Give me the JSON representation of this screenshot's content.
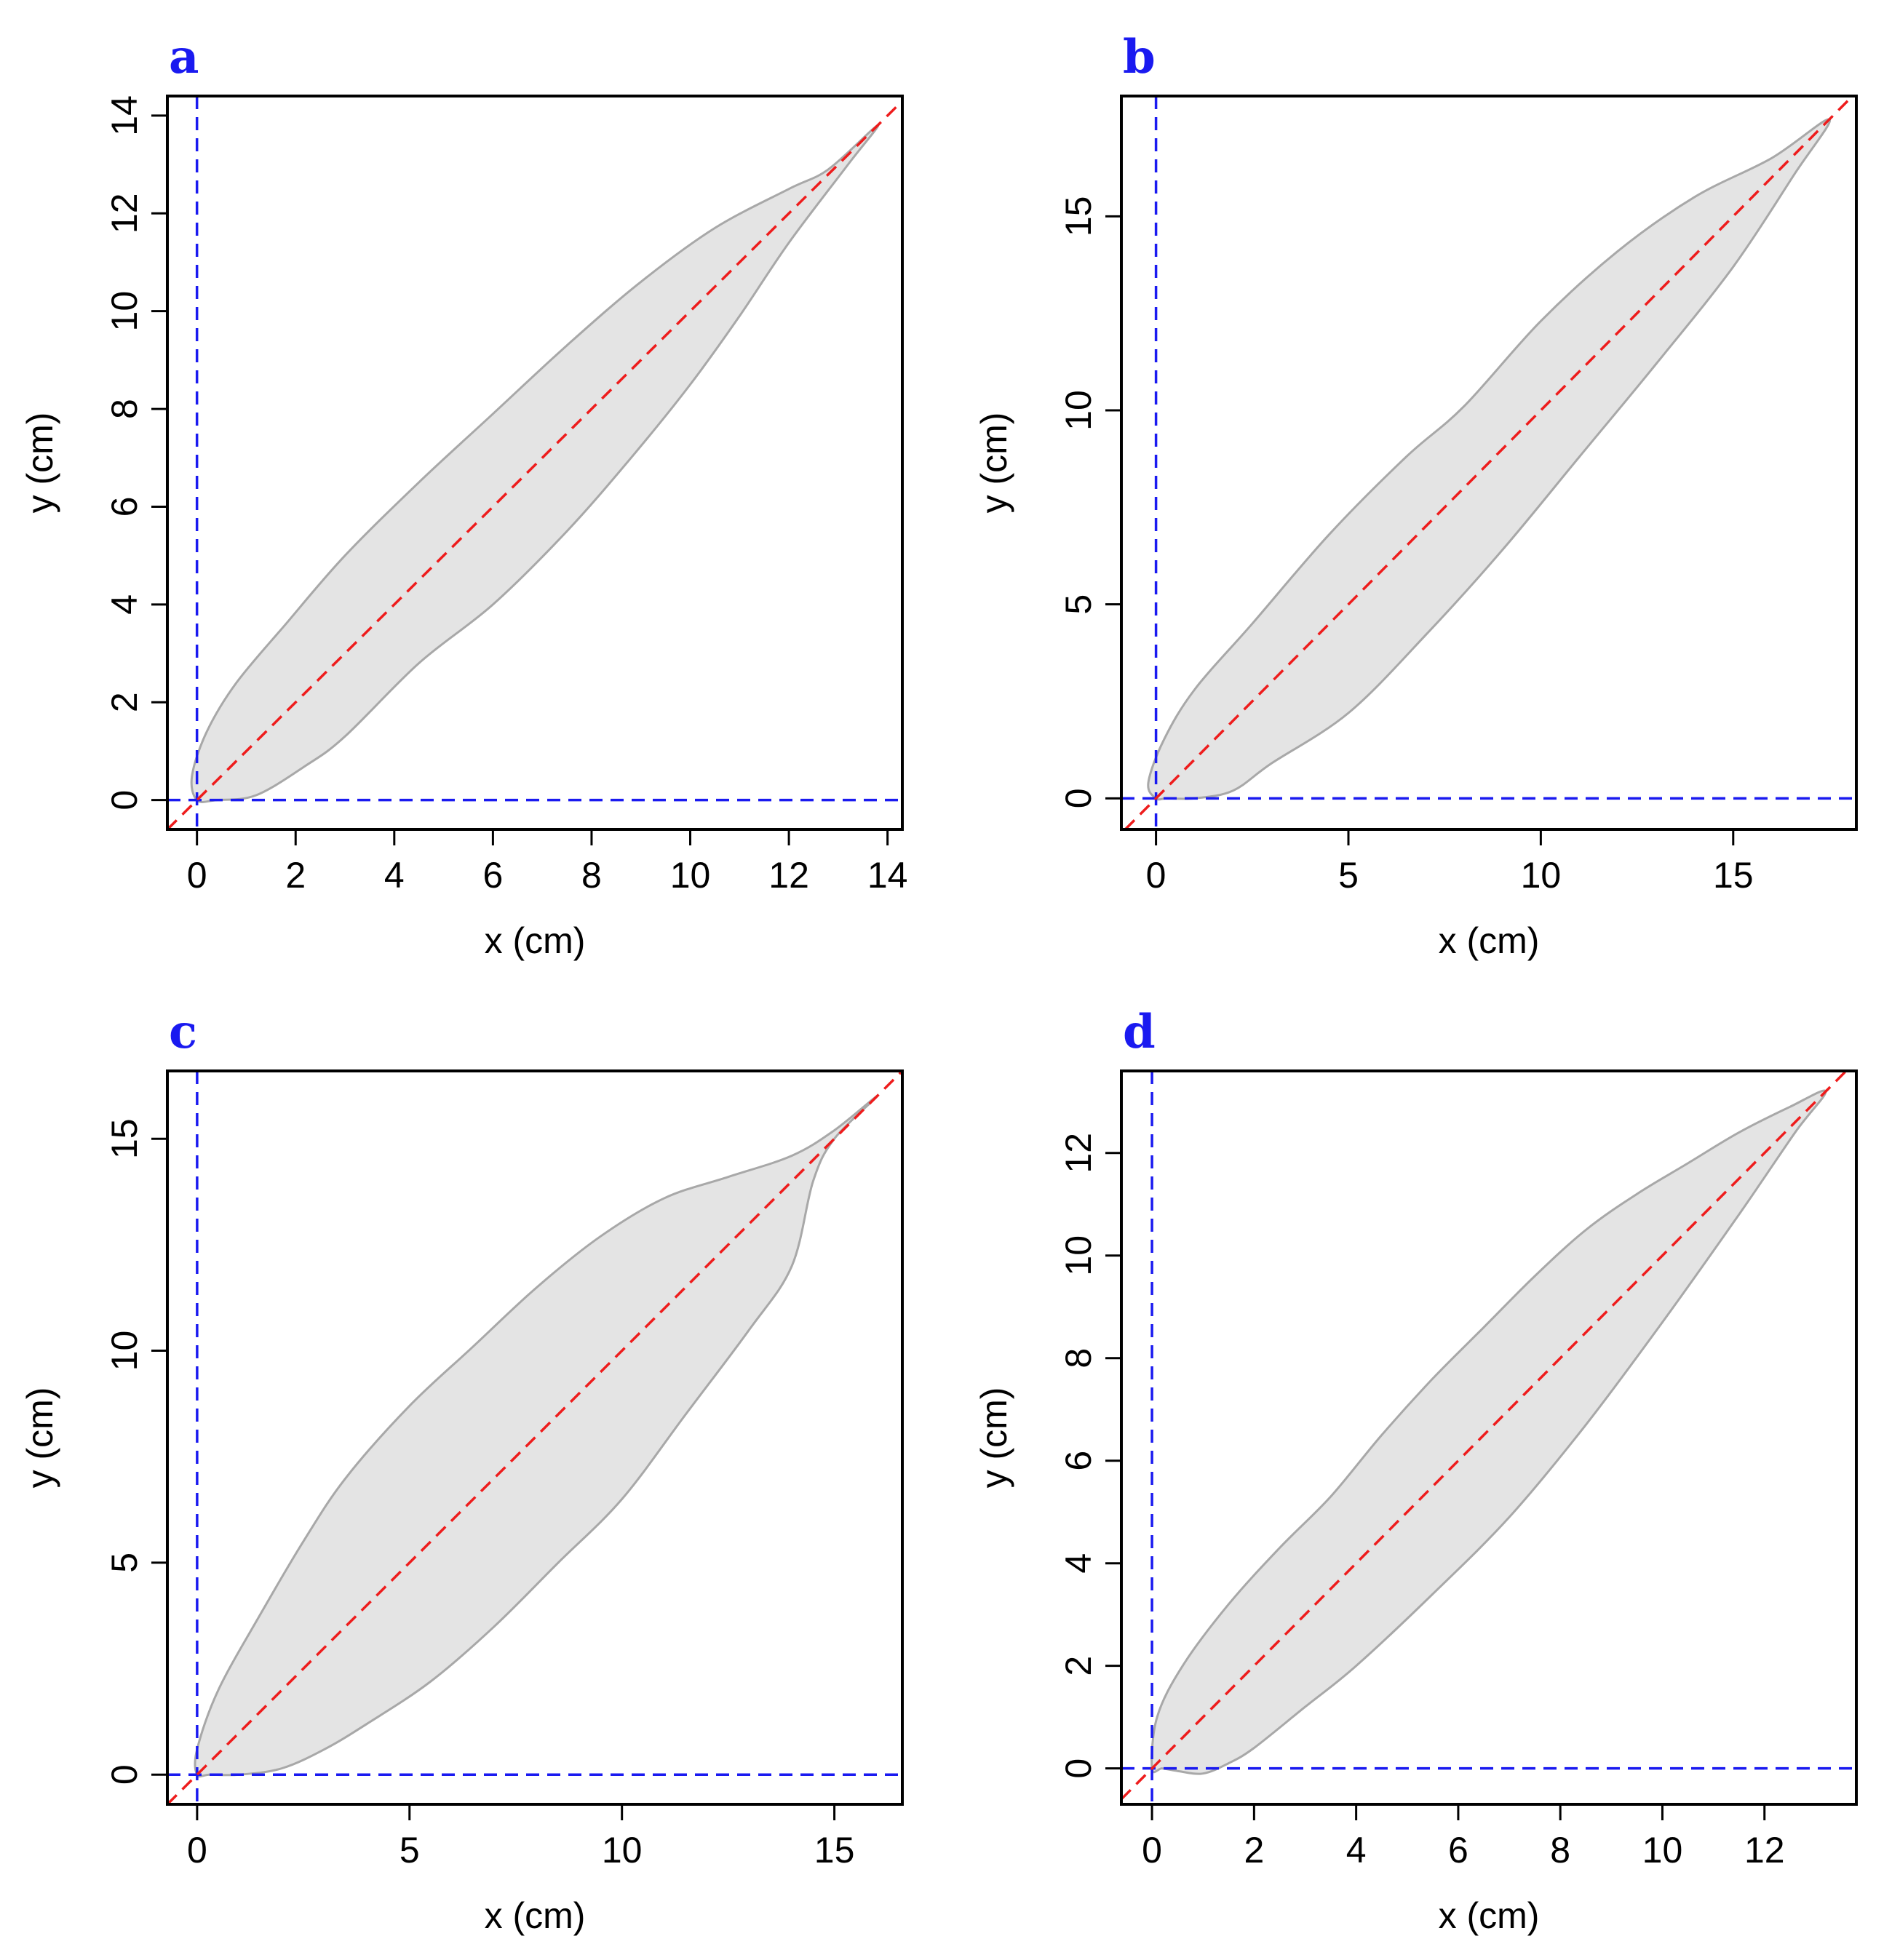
{
  "figure": {
    "colors": {
      "axis_guides": "#1a1af0",
      "diagonal": "#ee1c1c",
      "leaf_fill": "#e4e4e4",
      "leaf_outline": "#a8a8a8",
      "panel_letter": "#1a1af0"
    }
  },
  "chart_data": [
    {
      "type": "area",
      "panel": "a",
      "title": "",
      "xlabel": "x (cm)",
      "ylabel": "y (cm)",
      "xlim": [
        -0.6,
        14.3
      ],
      "ylim": [
        -0.6,
        14.4
      ],
      "xticks": [
        0,
        2,
        4,
        6,
        8,
        10,
        12,
        14
      ],
      "yticks": [
        0,
        2,
        4,
        6,
        8,
        10,
        12,
        14
      ],
      "grid": false,
      "reference_lines": [
        "x = 0 (blue dashed)",
        "y = 0 (blue dashed)",
        "y = x (red dashed)"
      ],
      "outline": [
        [
          0,
          0
        ],
        [
          -0.1,
          0.5
        ],
        [
          0.2,
          1.4
        ],
        [
          0.8,
          2.4
        ],
        [
          1.8,
          3.6
        ],
        [
          3,
          5
        ],
        [
          4.5,
          6.5
        ],
        [
          6,
          7.9
        ],
        [
          7.5,
          9.3
        ],
        [
          9,
          10.6
        ],
        [
          10.5,
          11.7
        ],
        [
          12,
          12.5
        ],
        [
          12.8,
          12.9
        ],
        [
          13.8,
          13.8
        ],
        [
          13.2,
          13
        ],
        [
          12,
          11.4
        ],
        [
          11,
          9.9
        ],
        [
          10,
          8.5
        ],
        [
          8.8,
          7
        ],
        [
          7.5,
          5.5
        ],
        [
          6,
          4
        ],
        [
          4.5,
          2.8
        ],
        [
          3,
          1.3
        ],
        [
          2.2,
          0.7
        ],
        [
          1.2,
          0.1
        ],
        [
          0.4,
          0
        ]
      ]
    },
    {
      "type": "area",
      "panel": "b",
      "title": "",
      "xlabel": "x (cm)",
      "ylabel": "y (cm)",
      "xlim": [
        -0.9,
        18.2
      ],
      "ylim": [
        -0.8,
        18.1
      ],
      "xticks": [
        0,
        5,
        10,
        15
      ],
      "yticks": [
        0,
        5,
        10,
        15
      ],
      "grid": false,
      "reference_lines": [
        "x = 0 (blue dashed)",
        "y = 0 (blue dashed)",
        "y = x (red dashed)"
      ],
      "outline": [
        [
          0,
          0
        ],
        [
          -0.2,
          0.4
        ],
        [
          0.2,
          1.5
        ],
        [
          1,
          2.8
        ],
        [
          2.5,
          4.5
        ],
        [
          4.5,
          6.8
        ],
        [
          6.5,
          8.8
        ],
        [
          8,
          10.1
        ],
        [
          10,
          12.3
        ],
        [
          12,
          14.1
        ],
        [
          14,
          15.5
        ],
        [
          16,
          16.5
        ],
        [
          17.5,
          17.5
        ],
        [
          16.6,
          16.1
        ],
        [
          15,
          13.7
        ],
        [
          13,
          11.2
        ],
        [
          11,
          8.8
        ],
        [
          9,
          6.4
        ],
        [
          7,
          4.2
        ],
        [
          5,
          2.2
        ],
        [
          3,
          0.9
        ],
        [
          2,
          0.2
        ],
        [
          1,
          0
        ],
        [
          0.3,
          0
        ]
      ]
    },
    {
      "type": "area",
      "panel": "c",
      "title": "",
      "xlabel": "x (cm)",
      "ylabel": "y (cm)",
      "xlim": [
        -0.7,
        16.6
      ],
      "ylim": [
        -0.7,
        16.6
      ],
      "xticks": [
        0,
        5,
        10,
        15
      ],
      "yticks": [
        0,
        5,
        10,
        15
      ],
      "grid": false,
      "reference_lines": [
        "x = 0 (blue dashed)",
        "y = 0 (blue dashed)",
        "y = x (red dashed)"
      ],
      "outline": [
        [
          0,
          0
        ],
        [
          0,
          0.6
        ],
        [
          0.5,
          2
        ],
        [
          1.5,
          3.8
        ],
        [
          2.5,
          5.5
        ],
        [
          3.5,
          7
        ],
        [
          5,
          8.7
        ],
        [
          6.5,
          10.1
        ],
        [
          8,
          11.5
        ],
        [
          9.5,
          12.7
        ],
        [
          11,
          13.6
        ],
        [
          12.5,
          14.1
        ],
        [
          14,
          14.6
        ],
        [
          15,
          15.2
        ],
        [
          16,
          16
        ],
        [
          15,
          15
        ],
        [
          14.5,
          14
        ],
        [
          14,
          12
        ],
        [
          13,
          10.5
        ],
        [
          11.5,
          8.5
        ],
        [
          10,
          6.5
        ],
        [
          8.5,
          5
        ],
        [
          7,
          3.5
        ],
        [
          5.5,
          2.2
        ],
        [
          4,
          1.2
        ],
        [
          3,
          0.6
        ],
        [
          2,
          0.15
        ],
        [
          1,
          0
        ],
        [
          0.3,
          0
        ]
      ]
    },
    {
      "type": "area",
      "panel": "d",
      "title": "",
      "xlabel": "x (cm)",
      "ylabel": "y (cm)",
      "xlim": [
        -0.6,
        13.8
      ],
      "ylim": [
        -0.7,
        13.6
      ],
      "xticks": [
        0,
        2,
        4,
        6,
        8,
        10,
        12
      ],
      "yticks": [
        0,
        2,
        4,
        6,
        8,
        10,
        12
      ],
      "grid": false,
      "reference_lines": [
        "x = 0 (blue dashed)",
        "y = 0 (blue dashed)",
        "y = x (red dashed)"
      ],
      "outline": [
        [
          0,
          0
        ],
        [
          0.1,
          1
        ],
        [
          0.6,
          2
        ],
        [
          1.5,
          3.2
        ],
        [
          2.5,
          4.3
        ],
        [
          3.5,
          5.3
        ],
        [
          4.5,
          6.5
        ],
        [
          5.5,
          7.6
        ],
        [
          6.5,
          8.6
        ],
        [
          7.5,
          9.6
        ],
        [
          8.5,
          10.5
        ],
        [
          9.5,
          11.2
        ],
        [
          10.5,
          11.8
        ],
        [
          11.5,
          12.4
        ],
        [
          12.5,
          12.9
        ],
        [
          13.2,
          13.2
        ],
        [
          12.6,
          12.4
        ],
        [
          11.5,
          10.8
        ],
        [
          10,
          8.7
        ],
        [
          8.5,
          6.7
        ],
        [
          7,
          4.9
        ],
        [
          5.5,
          3.4
        ],
        [
          4,
          2
        ],
        [
          3,
          1.2
        ],
        [
          2,
          0.4
        ],
        [
          1.5,
          0.1
        ],
        [
          1,
          -0.1
        ],
        [
          0.5,
          -0.05
        ],
        [
          0.2,
          0
        ]
      ]
    }
  ]
}
